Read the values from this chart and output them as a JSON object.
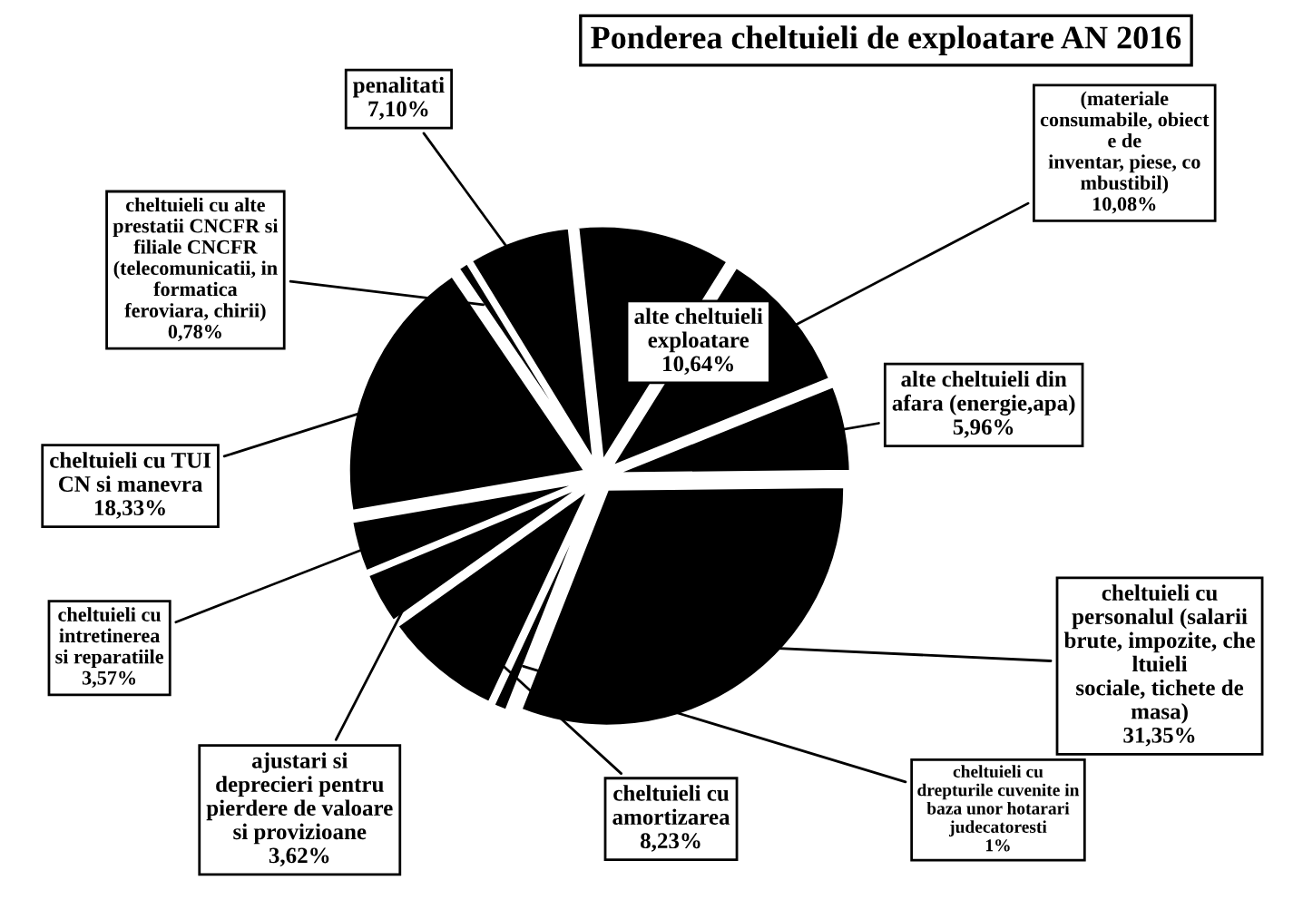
{
  "chart_data": {
    "type": "pie",
    "title": "Ponderea cheltuieli de exploatare AN 2016",
    "categories": [
      "(materiale\nconsumabile, obiect\ne de\ninventar, piese, co\nmbustibil)",
      "alte cheltuieli din\nafara (energie,apa)",
      "cheltuieli cu\npersonalul (salarii\nbrute, impozite, che\nltuieli\nsociale, tichete de\nmasa)",
      "cheltuieli cu\ndrepturile cuvenite in\nbaza unor hotarari\njudecatoresti",
      "cheltuieli cu\namortizarea",
      "ajustari si\ndeprecieri pentru\npierdere de valoare\nsi provizioane",
      "cheltuieli cu\nintretinerea\nsi reparatiile",
      "cheltuieli cu TUI\nCN si manevra",
      "cheltuieli cu alte\nprestatii CNCFR si\nfiliale CNCFR\n(telecomunicatii, in\nformatica\nferoviara, chirii)",
      "penalitati",
      "alte cheltuieli\nexploatare"
    ],
    "values": [
      10.08,
      5.96,
      31.35,
      1,
      8.23,
      3.62,
      3.57,
      18.33,
      0.78,
      7.1,
      10.64
    ],
    "value_labels": [
      "10,08%",
      "5,96%",
      "31,35%",
      "1%",
      "8,23%",
      "3,62%",
      "3,57%",
      "18,33%",
      "0,78%",
      "7,10%",
      "10,64%"
    ],
    "colors": [
      "#000000",
      "#000000",
      "#000000",
      "#000000",
      "#000000",
      "#000000",
      "#000000",
      "#000000",
      "#000000",
      "#000000",
      "#000000"
    ],
    "legend": false
  }
}
